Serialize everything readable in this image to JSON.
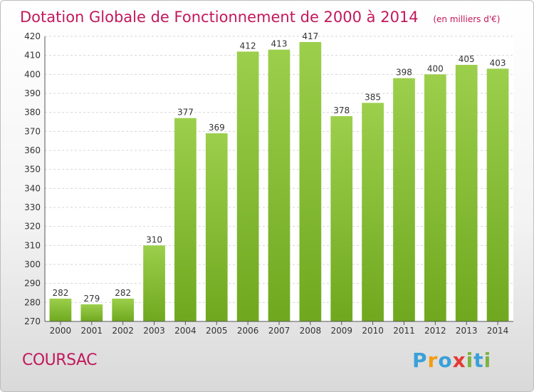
{
  "chart_data": {
    "type": "bar",
    "title": "Dotation Globale de Fonctionnement de 2000 à 2014",
    "unit_note": "(en milliers d'€)",
    "categories": [
      "2000",
      "2001",
      "2002",
      "2003",
      "2004",
      "2005",
      "2006",
      "2007",
      "2008",
      "2009",
      "2010",
      "2011",
      "2012",
      "2013",
      "2014"
    ],
    "values": [
      282,
      279,
      282,
      310,
      377,
      369,
      412,
      413,
      417,
      378,
      385,
      398,
      400,
      405,
      403
    ],
    "ylim": [
      270,
      420
    ],
    "yticks": [
      270,
      280,
      290,
      300,
      310,
      320,
      330,
      340,
      350,
      360,
      370,
      380,
      390,
      400,
      410,
      420
    ],
    "grid": true,
    "bar_color": "#8cc63f",
    "title_color": "#c2185b"
  },
  "footer": {
    "place": "COURSAC",
    "logo": [
      "P",
      "r",
      "o",
      "x",
      "i",
      "t",
      "i"
    ],
    "logo_colors": [
      "#3aa0d8",
      "#f39c12",
      "#3aa0d8",
      "#e53935",
      "#7cb342",
      "#3aa0d8",
      "#7cb342"
    ]
  }
}
